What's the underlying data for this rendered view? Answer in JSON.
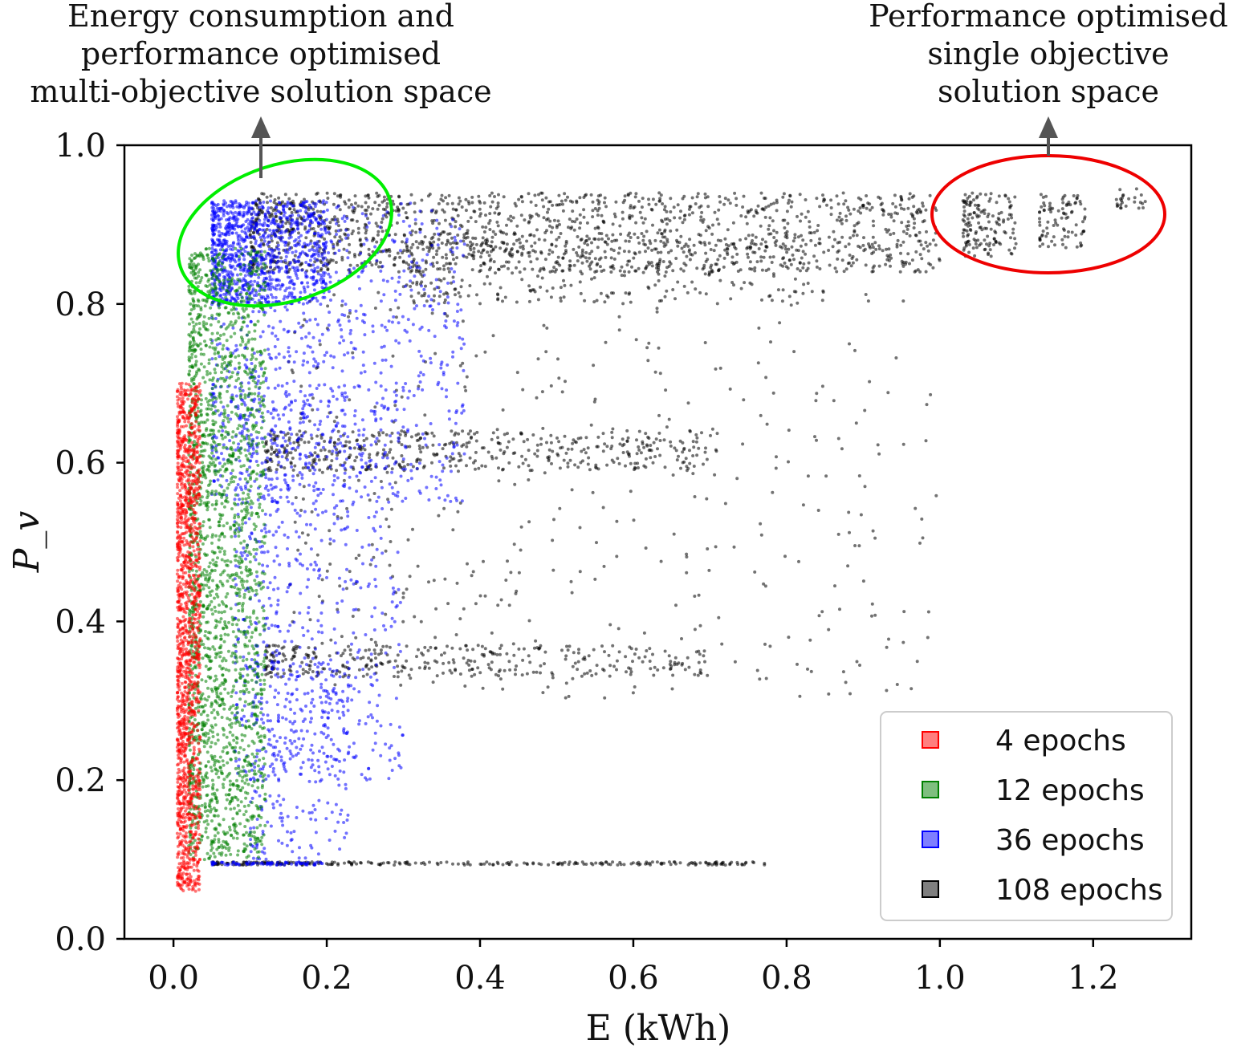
{
  "chart_data": {
    "type": "scatter",
    "xlabel": "E (kWh)",
    "ylabel": "P_v",
    "xlim": [
      -0.064,
      1.328
    ],
    "ylim": [
      0.0,
      1.0
    ],
    "xticks": [
      "0.0",
      "0.2",
      "0.4",
      "0.6",
      "0.8",
      "1.0",
      "1.2"
    ],
    "yticks": [
      "0.0",
      "0.2",
      "0.4",
      "0.6",
      "0.8",
      "1.0"
    ],
    "grid": false,
    "legend_position": "bottom-right",
    "series": [
      {
        "name": "108 epochs",
        "color": "#000000",
        "clusters": [
          {
            "x": [
              0.1,
              1.0
            ],
            "y": [
              0.84,
              0.94
            ],
            "n": 1500
          },
          {
            "x": [
              0.3,
              0.85
            ],
            "y": [
              0.8,
              0.88
            ],
            "n": 300
          },
          {
            "x": [
              1.03,
              1.1
            ],
            "y": [
              0.86,
              0.94
            ],
            "n": 150
          },
          {
            "x": [
              1.13,
              1.19
            ],
            "y": [
              0.87,
              0.94
            ],
            "n": 90
          },
          {
            "x": [
              1.23,
              1.27
            ],
            "y": [
              0.92,
              0.945
            ],
            "n": 25
          },
          {
            "x": [
              0.12,
              0.71
            ],
            "y": [
              0.59,
              0.64
            ],
            "n": 450
          },
          {
            "x": [
              0.12,
              0.7
            ],
            "y": [
              0.33,
              0.37
            ],
            "n": 320
          },
          {
            "x": [
              0.05,
              0.78
            ],
            "y": [
              0.093,
              0.097
            ],
            "n": 260
          },
          {
            "x": [
              0.15,
              1.0
            ],
            "y": [
              0.3,
              0.82
            ],
            "n": 450
          }
        ]
      },
      {
        "name": "36 epochs",
        "color": "#0000ff",
        "clusters": [
          {
            "x": [
              0.05,
              0.2
            ],
            "y": [
              0.8,
              0.93
            ],
            "n": 900
          },
          {
            "x": [
              0.05,
              0.38
            ],
            "y": [
              0.55,
              0.93
            ],
            "n": 900
          },
          {
            "x": [
              0.08,
              0.3
            ],
            "y": [
              0.2,
              0.7
            ],
            "n": 700
          },
          {
            "x": [
              0.1,
              0.23
            ],
            "y": [
              0.1,
              0.35
            ],
            "n": 250
          },
          {
            "x": [
              0.05,
              0.2
            ],
            "y": [
              0.093,
              0.097
            ],
            "n": 80
          }
        ]
      },
      {
        "name": "12 epochs",
        "color": "#008000",
        "clusters": [
          {
            "x": [
              0.02,
              0.12
            ],
            "y": [
              0.1,
              0.87
            ],
            "n": 2200
          }
        ]
      },
      {
        "name": "4 epochs",
        "color": "#ff0000",
        "clusters": [
          {
            "x": [
              0.005,
              0.035
            ],
            "y": [
              0.06,
              0.7
            ],
            "n": 1500
          }
        ]
      }
    ],
    "annotations": [
      {
        "text": [
          "Energy consumption  and",
          "performance optimised",
          "multi-objective solution space"
        ],
        "ellipse_color": "#00ee00",
        "center": [
          0.11,
          0.87
        ]
      },
      {
        "text": [
          "Performance optimised",
          "single objective",
          "solution space"
        ],
        "ellipse_color": "#ee0000",
        "center": [
          1.15,
          0.91
        ]
      }
    ]
  }
}
